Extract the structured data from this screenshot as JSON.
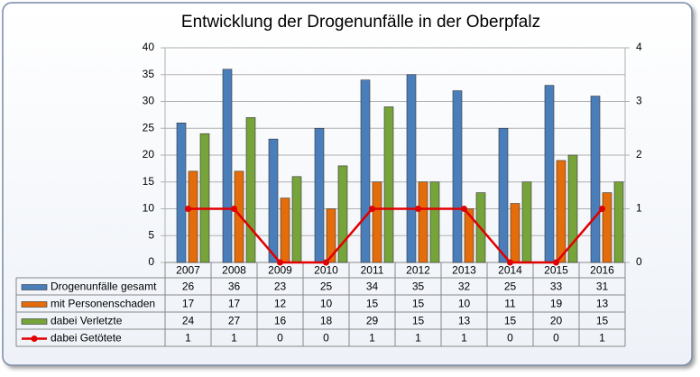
{
  "chart_data": {
    "type": "bar",
    "title": "Entwicklung der Drogenunfälle in der Oberpfalz",
    "categories": [
      "2007",
      "2008",
      "2009",
      "2010",
      "2011",
      "2012",
      "2013",
      "2014",
      "2015",
      "2016"
    ],
    "series": [
      {
        "name": "Drogenunfälle gesamt",
        "color": "#4a7ebb",
        "values": [
          26,
          36,
          23,
          25,
          34,
          35,
          32,
          25,
          33,
          31
        ]
      },
      {
        "name": "mit Personenschaden",
        "color": "#e46c0a",
        "values": [
          17,
          17,
          12,
          10,
          15,
          15,
          10,
          11,
          19,
          13
        ]
      },
      {
        "name": "dabei Verletzte",
        "color": "#77a33b",
        "values": [
          24,
          27,
          16,
          18,
          29,
          15,
          13,
          15,
          20,
          15
        ]
      },
      {
        "name": "dabei Getötete",
        "color": "#e00000",
        "type": "line",
        "axis": "y2",
        "values": [
          1,
          1,
          0,
          0,
          1,
          1,
          1,
          0,
          0,
          1
        ]
      }
    ],
    "ylim": [
      0,
      40
    ],
    "yticks": [
      0,
      5,
      10,
      15,
      20,
      25,
      30,
      35,
      40
    ],
    "y2lim": [
      0,
      4
    ],
    "y2ticks": [
      0,
      1,
      2,
      3,
      4
    ],
    "grid": true
  }
}
